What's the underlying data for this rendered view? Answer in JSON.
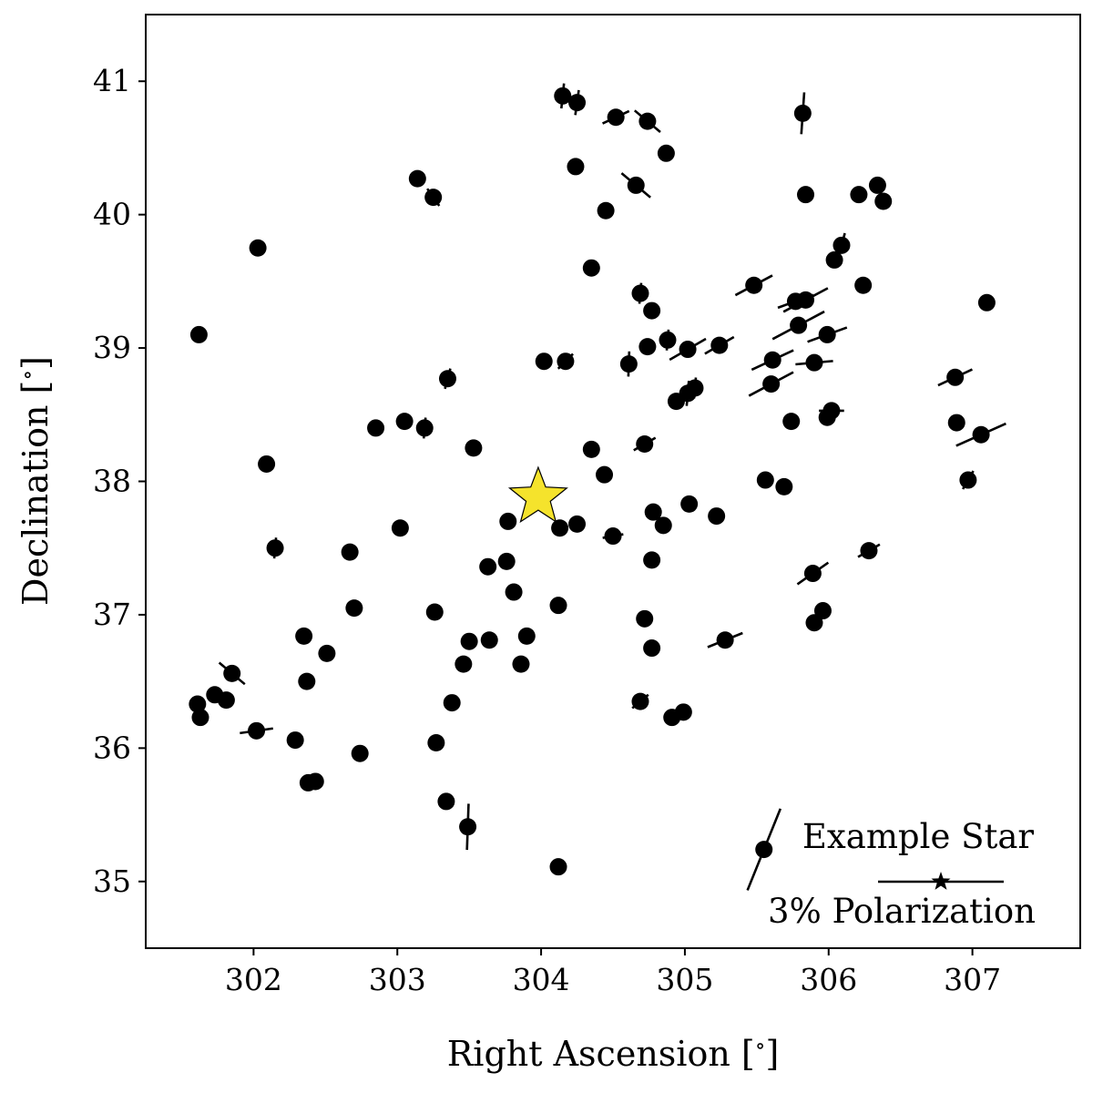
{
  "chart_data": {
    "type": "scatter",
    "xlabel": "Right Ascension [$^\\circ$]",
    "ylabel": "Declination [$^\\circ$]",
    "xlim": [
      301.25,
      307.75
    ],
    "ylim": [
      34.5,
      41.5
    ],
    "x_ticks": [
      302,
      303,
      304,
      305,
      306,
      307
    ],
    "y_ticks": [
      35,
      36,
      37,
      38,
      39,
      40,
      41
    ],
    "x_tick_labels": [
      "302",
      "303",
      "304",
      "305",
      "306",
      "307"
    ],
    "y_tick_labels": [
      "35",
      "36",
      "37",
      "38",
      "39",
      "40",
      "41"
    ],
    "grid": false,
    "marker_color": "#000000",
    "star_color": "#f5e32c",
    "target_star": {
      "ra": 303.98,
      "dec": 37.88
    },
    "legend": {
      "example_star_label": "Example Star",
      "scale_label": "3% Polarization",
      "scale_percent": 3,
      "example_star": {
        "ra": 305.55,
        "dec": 35.24,
        "pol_percent": 2.1,
        "angle_deg": 68
      }
    },
    "points": [
      {
        "ra": 304.15,
        "dec": 40.89,
        "pol": 0.6,
        "ang": 84
      },
      {
        "ra": 304.25,
        "dec": 40.84,
        "pol": 0.6,
        "ang": 82
      },
      {
        "ra": 304.52,
        "dec": 40.73,
        "pol": 0.7,
        "ang": 25
      },
      {
        "ra": 304.74,
        "dec": 40.7,
        "pol": 0.8,
        "ang": -40
      },
      {
        "ra": 304.87,
        "dec": 40.46,
        "pol": 0.3,
        "ang": 0
      },
      {
        "ra": 304.24,
        "dec": 40.36,
        "pol": 0.0,
        "ang": 0
      },
      {
        "ra": 304.66,
        "dec": 40.22,
        "pol": 0.9,
        "ang": -40
      },
      {
        "ra": 305.82,
        "dec": 40.76,
        "pol": 1.0,
        "ang": 86
      },
      {
        "ra": 305.84,
        "dec": 40.15,
        "pol": 0.2,
        "ang": -5
      },
      {
        "ra": 306.21,
        "dec": 40.15,
        "pol": 0.0,
        "ang": 0
      },
      {
        "ra": 306.34,
        "dec": 40.22,
        "pol": 0.2,
        "ang": 60
      },
      {
        "ra": 306.38,
        "dec": 40.1,
        "pol": 0.0,
        "ang": 0
      },
      {
        "ra": 304.45,
        "dec": 40.03,
        "pol": 0.3,
        "ang": -60
      },
      {
        "ra": 303.14,
        "dec": 40.27,
        "pol": 0.2,
        "ang": 80
      },
      {
        "ra": 303.25,
        "dec": 40.13,
        "pol": 0.5,
        "ang": -55
      },
      {
        "ra": 302.03,
        "dec": 39.75,
        "pol": 0.4,
        "ang": 80
      },
      {
        "ra": 301.62,
        "dec": 39.1,
        "pol": 0.0,
        "ang": 0
      },
      {
        "ra": 304.35,
        "dec": 39.6,
        "pol": 0.2,
        "ang": -40
      },
      {
        "ra": 304.69,
        "dec": 39.41,
        "pol": 0.5,
        "ang": 85
      },
      {
        "ra": 304.77,
        "dec": 39.28,
        "pol": 0.4,
        "ang": 40
      },
      {
        "ra": 305.48,
        "dec": 39.47,
        "pol": 1.0,
        "ang": 28
      },
      {
        "ra": 306.04,
        "dec": 39.66,
        "pol": 0.1,
        "ang": 0
      },
      {
        "ra": 306.09,
        "dec": 39.77,
        "pol": 0.6,
        "ang": 75
      },
      {
        "ra": 305.77,
        "dec": 39.35,
        "pol": 0.9,
        "ang": 20
      },
      {
        "ra": 305.84,
        "dec": 39.36,
        "pol": 1.2,
        "ang": 28
      },
      {
        "ra": 306.24,
        "dec": 39.47,
        "pol": 0.0,
        "ang": 0
      },
      {
        "ra": 305.79,
        "dec": 39.17,
        "pol": 1.4,
        "ang": 28
      },
      {
        "ra": 305.99,
        "dec": 39.1,
        "pol": 1.0,
        "ang": 20
      },
      {
        "ra": 305.61,
        "dec": 38.91,
        "pol": 1.1,
        "ang": 25
      },
      {
        "ra": 305.9,
        "dec": 38.89,
        "pol": 0.9,
        "ang": 5
      },
      {
        "ra": 305.6,
        "dec": 38.73,
        "pol": 1.2,
        "ang": 28
      },
      {
        "ra": 305.24,
        "dec": 39.02,
        "pol": 0.8,
        "ang": 30
      },
      {
        "ra": 305.02,
        "dec": 38.99,
        "pol": 1.0,
        "ang": 30
      },
      {
        "ra": 304.88,
        "dec": 39.06,
        "pol": 0.5,
        "ang": 85
      },
      {
        "ra": 304.74,
        "dec": 39.01,
        "pol": 0.1,
        "ang": 80
      },
      {
        "ra": 304.61,
        "dec": 38.88,
        "pol": 0.6,
        "ang": 88
      },
      {
        "ra": 304.17,
        "dec": 38.9,
        "pol": 0.5,
        "ang": 45
      },
      {
        "ra": 304.02,
        "dec": 38.9,
        "pol": 0.0,
        "ang": 0
      },
      {
        "ra": 303.35,
        "dec": 38.77,
        "pol": 0.5,
        "ang": 75
      },
      {
        "ra": 305.07,
        "dec": 38.7,
        "pol": 0.5,
        "ang": 85
      },
      {
        "ra": 305.02,
        "dec": 38.66,
        "pol": 0.6,
        "ang": 85
      },
      {
        "ra": 304.94,
        "dec": 38.6,
        "pol": 0.2,
        "ang": 50
      },
      {
        "ra": 305.74,
        "dec": 38.45,
        "pol": 0.2,
        "ang": 60
      },
      {
        "ra": 305.99,
        "dec": 38.48,
        "pol": 0.3,
        "ang": -10
      },
      {
        "ra": 306.02,
        "dec": 38.53,
        "pol": 0.6,
        "ang": 0
      },
      {
        "ra": 303.05,
        "dec": 38.45,
        "pol": 0.0,
        "ang": 0
      },
      {
        "ra": 303.19,
        "dec": 38.4,
        "pol": 0.5,
        "ang": 85
      },
      {
        "ra": 302.85,
        "dec": 38.4,
        "pol": 0.0,
        "ang": 0
      },
      {
        "ra": 306.88,
        "dec": 38.78,
        "pol": 0.9,
        "ang": 25
      },
      {
        "ra": 306.89,
        "dec": 38.44,
        "pol": 0.0,
        "ang": 0
      },
      {
        "ra": 307.06,
        "dec": 38.35,
        "pol": 1.3,
        "ang": 24
      },
      {
        "ra": 307.1,
        "dec": 39.34,
        "pol": 0.0,
        "ang": 0
      },
      {
        "ra": 304.72,
        "dec": 38.28,
        "pol": 0.6,
        "ang": 30
      },
      {
        "ra": 304.35,
        "dec": 38.24,
        "pol": 0.2,
        "ang": 50
      },
      {
        "ra": 303.53,
        "dec": 38.25,
        "pol": 0.2,
        "ang": -50
      },
      {
        "ra": 302.09,
        "dec": 38.13,
        "pol": 0.4,
        "ang": 45
      },
      {
        "ra": 304.44,
        "dec": 38.05,
        "pol": 0.3,
        "ang": 30
      },
      {
        "ra": 305.56,
        "dec": 38.01,
        "pol": 0.0,
        "ang": 0
      },
      {
        "ra": 305.69,
        "dec": 37.96,
        "pol": 0.3,
        "ang": 75
      },
      {
        "ra": 306.97,
        "dec": 38.01,
        "pol": 0.5,
        "ang": 60
      },
      {
        "ra": 305.03,
        "dec": 37.83,
        "pol": 0.2,
        "ang": 20
      },
      {
        "ra": 304.78,
        "dec": 37.77,
        "pol": 0.3,
        "ang": 30
      },
      {
        "ra": 305.22,
        "dec": 37.74,
        "pol": 0.3,
        "ang": 10
      },
      {
        "ra": 304.85,
        "dec": 37.67,
        "pol": 0.3,
        "ang": 30
      },
      {
        "ra": 304.25,
        "dec": 37.68,
        "pol": 0.1,
        "ang": 0
      },
      {
        "ra": 304.13,
        "dec": 37.65,
        "pol": 0.1,
        "ang": -30
      },
      {
        "ra": 304.5,
        "dec": 37.59,
        "pol": 0.5,
        "ang": 10
      },
      {
        "ra": 303.77,
        "dec": 37.7,
        "pol": 0.0,
        "ang": 0
      },
      {
        "ra": 303.02,
        "dec": 37.65,
        "pol": 0.1,
        "ang": -40
      },
      {
        "ra": 302.15,
        "dec": 37.5,
        "pol": 0.5,
        "ang": 85
      },
      {
        "ra": 302.67,
        "dec": 37.47,
        "pol": 0.2,
        "ang": 80
      },
      {
        "ra": 303.76,
        "dec": 37.4,
        "pol": 0.0,
        "ang": 0
      },
      {
        "ra": 303.63,
        "dec": 37.36,
        "pol": 0.3,
        "ang": 70
      },
      {
        "ra": 304.77,
        "dec": 37.41,
        "pol": 0.4,
        "ang": 20
      },
      {
        "ra": 305.89,
        "dec": 37.31,
        "pol": 0.9,
        "ang": 35
      },
      {
        "ra": 306.28,
        "dec": 37.48,
        "pol": 0.6,
        "ang": 30
      },
      {
        "ra": 303.81,
        "dec": 37.17,
        "pol": 0.0,
        "ang": 0
      },
      {
        "ra": 302.7,
        "dec": 37.05,
        "pol": 0.0,
        "ang": 0
      },
      {
        "ra": 303.26,
        "dec": 37.02,
        "pol": 0.0,
        "ang": 0
      },
      {
        "ra": 304.12,
        "dec": 37.07,
        "pol": 0.0,
        "ang": 0
      },
      {
        "ra": 304.72,
        "dec": 36.97,
        "pol": 0.4,
        "ang": -10
      },
      {
        "ra": 305.96,
        "dec": 37.03,
        "pol": 0.0,
        "ang": 0
      },
      {
        "ra": 305.9,
        "dec": 36.94,
        "pol": 0.0,
        "ang": 0
      },
      {
        "ra": 303.9,
        "dec": 36.84,
        "pol": 0.1,
        "ang": 80
      },
      {
        "ra": 305.28,
        "dec": 36.81,
        "pol": 0.9,
        "ang": 22
      },
      {
        "ra": 302.35,
        "dec": 36.84,
        "pol": 0.0,
        "ang": 0
      },
      {
        "ra": 303.5,
        "dec": 36.8,
        "pol": 0.2,
        "ang": -45
      },
      {
        "ra": 303.64,
        "dec": 36.81,
        "pol": 0.0,
        "ang": 0
      },
      {
        "ra": 302.51,
        "dec": 36.71,
        "pol": 0.2,
        "ang": -45
      },
      {
        "ra": 304.77,
        "dec": 36.75,
        "pol": 0.0,
        "ang": 0
      },
      {
        "ra": 303.86,
        "dec": 36.63,
        "pol": 0.3,
        "ang": -40
      },
      {
        "ra": 303.46,
        "dec": 36.63,
        "pol": 0.2,
        "ang": 60
      },
      {
        "ra": 301.85,
        "dec": 36.56,
        "pol": 0.8,
        "ang": -40
      },
      {
        "ra": 302.37,
        "dec": 36.5,
        "pol": 0.0,
        "ang": 0
      },
      {
        "ra": 301.73,
        "dec": 36.4,
        "pol": 0.3,
        "ang": -55
      },
      {
        "ra": 301.81,
        "dec": 36.36,
        "pol": 0.3,
        "ang": -70
      },
      {
        "ra": 301.61,
        "dec": 36.33,
        "pol": 0.2,
        "ang": -40
      },
      {
        "ra": 301.63,
        "dec": 36.23,
        "pol": 0.0,
        "ang": 0
      },
      {
        "ra": 303.38,
        "dec": 36.34,
        "pol": 0.0,
        "ang": 0
      },
      {
        "ra": 304.69,
        "dec": 36.35,
        "pol": 0.5,
        "ang": 40
      },
      {
        "ra": 304.99,
        "dec": 36.27,
        "pol": 0.4,
        "ang": 35
      },
      {
        "ra": 304.91,
        "dec": 36.23,
        "pol": 0.0,
        "ang": 0
      },
      {
        "ra": 302.02,
        "dec": 36.13,
        "pol": 0.8,
        "ang": 8
      },
      {
        "ra": 302.29,
        "dec": 36.06,
        "pol": 0.3,
        "ang": 70
      },
      {
        "ra": 303.27,
        "dec": 36.04,
        "pol": 0.3,
        "ang": -40
      },
      {
        "ra": 302.74,
        "dec": 35.96,
        "pol": 0.2,
        "ang": 15
      },
      {
        "ra": 302.38,
        "dec": 35.74,
        "pol": 0.3,
        "ang": -65
      },
      {
        "ra": 302.43,
        "dec": 35.75,
        "pol": 0.3,
        "ang": 80
      },
      {
        "ra": 303.34,
        "dec": 35.6,
        "pol": 0.0,
        "ang": 0
      },
      {
        "ra": 303.49,
        "dec": 35.41,
        "pol": 1.1,
        "ang": 88
      },
      {
        "ra": 304.12,
        "dec": 35.11,
        "pol": 0.3,
        "ang": 90
      }
    ]
  }
}
